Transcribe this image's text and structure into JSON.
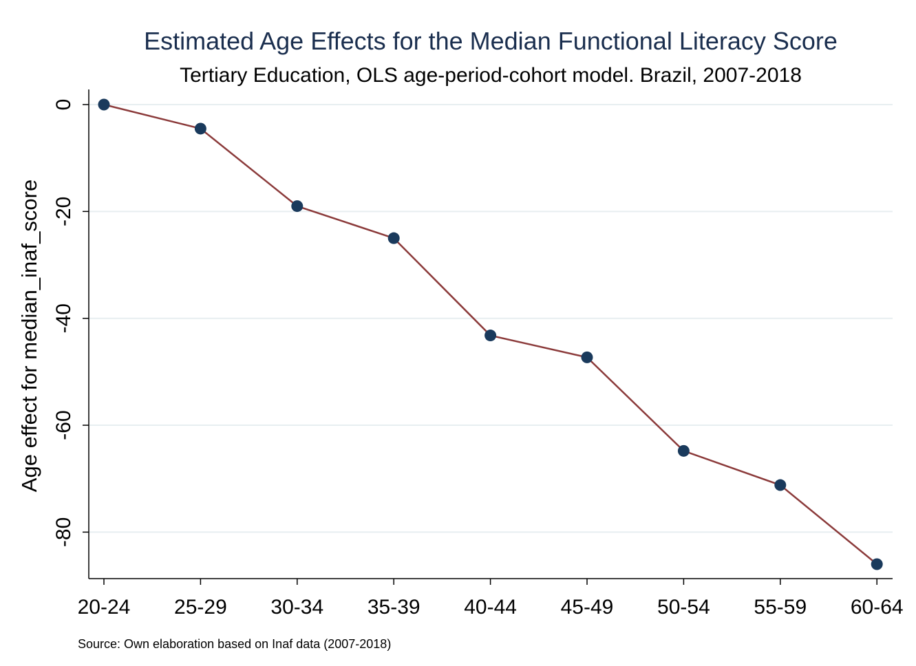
{
  "chart_data": {
    "type": "line",
    "title": "Estimated Age Effects for the Median Functional Literacy Score",
    "subtitle": "Tertiary Education, OLS age-period-cohort model. Brazil, 2007-2018",
    "xlabel": "",
    "ylabel": "Age effect for median_inaf_score",
    "categories": [
      "20-24",
      "25-29",
      "30-34",
      "35-39",
      "40-44",
      "45-49",
      "50-54",
      "55-59",
      "60-64"
    ],
    "series": [
      {
        "values": [
          0,
          -4.5,
          -19,
          -25,
          -43.2,
          -47.3,
          -64.8,
          -71.2,
          -86
        ]
      }
    ],
    "ylim": [
      -86,
      0
    ],
    "yticks": [
      0,
      -20,
      -40,
      -60,
      -80
    ],
    "grid": true,
    "note": "Source: Own elaboration based on Inaf data (2007-2018)",
    "colors": {
      "line": "#8b3a3a",
      "marker": "#1a3a5c",
      "grid": "#e7eef0",
      "title": "#1a2e4e"
    }
  }
}
